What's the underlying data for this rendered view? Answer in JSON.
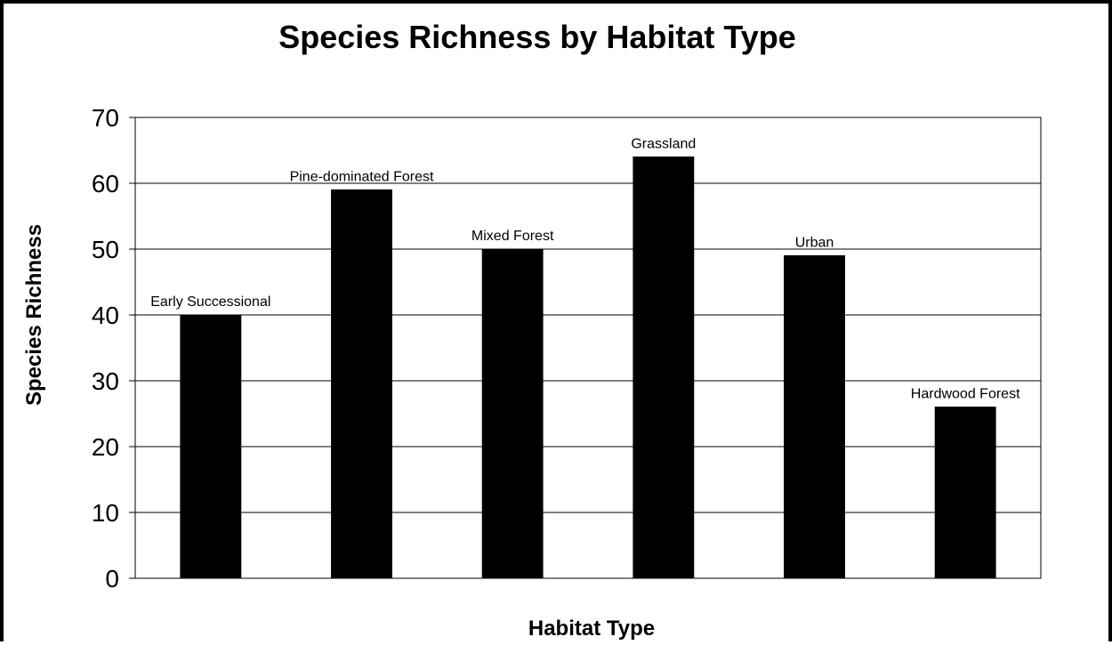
{
  "chart_data": {
    "type": "bar",
    "title": "Species Richness by Habitat Type",
    "xlabel": "Habitat Type",
    "ylabel": "Species Richness",
    "categories": [
      "Early Successional",
      "Pine-dominated Forest",
      "Mixed Forest",
      "Grassland",
      "Urban",
      "Hardwood Forest"
    ],
    "values": [
      40,
      59,
      50,
      64,
      49,
      26
    ],
    "data_labels": [
      "Early Successional",
      "Pine-dominated Forest",
      "Mixed Forest",
      "Grassland",
      "Urban",
      "Hardwood Forest"
    ],
    "ylim": [
      0,
      70
    ],
    "yticks": [
      0,
      10,
      20,
      30,
      40,
      50,
      60,
      70
    ],
    "grid": true,
    "legend": "none",
    "bar_color": "#000000"
  }
}
